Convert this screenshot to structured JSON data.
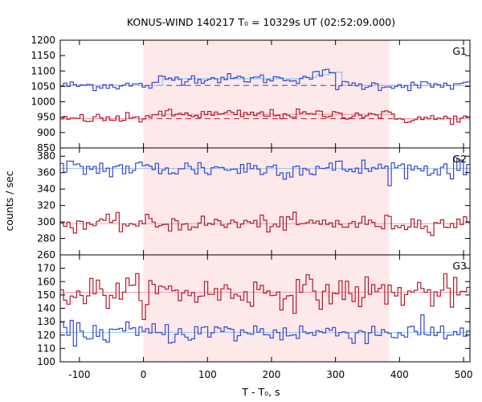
{
  "chart_data": {
    "type": "line",
    "title": "KONUS-WIND 140217 T₀ = 10329s UT (02:52:09.000)",
    "xlabel": "T - T₀, s",
    "ylabel": "counts / sec",
    "xlim": [
      -130,
      510
    ],
    "x_ticks": [
      -100,
      0,
      100,
      200,
      300,
      400,
      500
    ],
    "highlight_interval": [
      0,
      384
    ],
    "highlight_color": "#fde8ea",
    "bin_width_s": 5.12,
    "panels": [
      {
        "label": "G1",
        "ylim": [
          850,
          1200
        ],
        "y_ticks": [
          850,
          900,
          950,
          1000,
          1050,
          1100,
          1150,
          1200
        ],
        "series": [
          {
            "color": "#3a47c9",
            "fit_color": "#8ec8ee",
            "background": 1053,
            "noise": 8,
            "bumps": [
              {
                "x0": 20,
                "x1": 300,
                "value": 22
              },
              {
                "x0": 240,
                "x1": 300,
                "value": 25,
                "shape": "ramp"
              }
            ],
            "dashed_background": true,
            "dash_color": "#3a47c9"
          },
          {
            "color": "#b01c2e",
            "fit_color": "#f2a0a8",
            "background": 945,
            "noise": 8,
            "bumps": [
              {
                "x0": 0,
                "x1": 384,
                "value": 14
              }
            ],
            "dashed_background": true,
            "dash_color": "#b01c2e"
          }
        ]
      },
      {
        "label": "G2",
        "ylim": [
          260,
          390
        ],
        "y_ticks": [
          260,
          280,
          300,
          320,
          340,
          360,
          380
        ],
        "series": [
          {
            "color": "#3a47c9",
            "fit_color": "#8ec8ee",
            "background": 365,
            "noise": 6,
            "bumps": [],
            "dashed_background": false
          },
          {
            "color": "#b01c2e",
            "fit_color": "#f2a0a8",
            "background": 298,
            "noise": 5,
            "bumps": [],
            "dashed_background": false
          }
        ]
      },
      {
        "label": "G3",
        "ylim": [
          100,
          180
        ],
        "y_ticks": [
          100,
          110,
          120,
          130,
          140,
          150,
          160,
          170
        ],
        "series": [
          {
            "color": "#b01c2e",
            "fit_color": "#f2a0a8",
            "background": 152,
            "noise": 6,
            "bumps": [],
            "dashed_background": false
          },
          {
            "color": "#3a47c9",
            "fit_color": "#8ec8ee",
            "background": 122,
            "noise": 4,
            "bumps": [],
            "dashed_background": false
          }
        ]
      }
    ]
  }
}
